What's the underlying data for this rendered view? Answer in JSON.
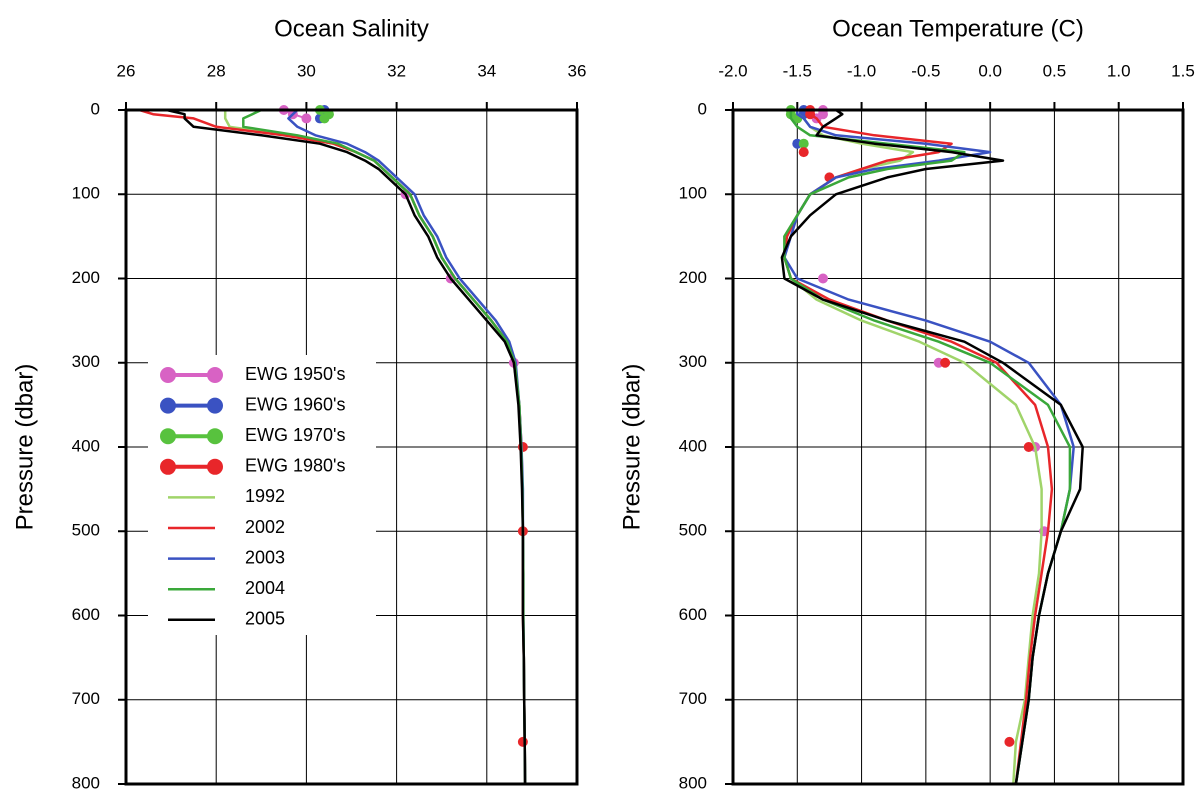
{
  "chart_data": [
    {
      "type": "line",
      "title": "Ocean Salinity",
      "ylabel": "Pressure (dbar)",
      "xlim": [
        26,
        36
      ],
      "xticks": [
        26,
        28,
        30,
        32,
        34,
        36
      ],
      "ylim": [
        0,
        800
      ],
      "yticks": [
        0,
        100,
        200,
        300,
        400,
        500,
        600,
        700,
        800
      ],
      "y_inverted": true,
      "grid": true,
      "legend": "left",
      "pressure": [
        0,
        5,
        10,
        20,
        30,
        40,
        50,
        60,
        70,
        80,
        100,
        125,
        150,
        175,
        200,
        225,
        250,
        275,
        300,
        350,
        400,
        450,
        500,
        550,
        600,
        650,
        700,
        750,
        800
      ],
      "series": [
        {
          "name": "EWG 1950's",
          "color": "#d862c4",
          "markers": true,
          "values": [
            29.5,
            29.7,
            30.0,
            null,
            null,
            null,
            null,
            null,
            null,
            null,
            32.2,
            null,
            null,
            null,
            33.2,
            null,
            null,
            null,
            34.6,
            null,
            null,
            null,
            null,
            null,
            null,
            null,
            null,
            null,
            null
          ]
        },
        {
          "name": "EWG 1960's",
          "color": "#3a52c2",
          "markers": true,
          "values": [
            30.4,
            30.4,
            30.3,
            null,
            null,
            null,
            null,
            null,
            null,
            null,
            null,
            null,
            null,
            null,
            null,
            null,
            null,
            null,
            null,
            null,
            null,
            null,
            null,
            null,
            null,
            null,
            null,
            null,
            null
          ]
        },
        {
          "name": "EWG 1970's",
          "color": "#58c23e",
          "markers": true,
          "values": [
            30.3,
            30.5,
            30.4,
            null,
            null,
            null,
            null,
            null,
            null,
            null,
            null,
            null,
            null,
            null,
            null,
            null,
            null,
            null,
            null,
            null,
            null,
            null,
            null,
            null,
            null,
            null,
            null,
            null,
            null
          ]
        },
        {
          "name": "EWG 1980's",
          "color": "#e8262a",
          "markers": true,
          "values": [
            null,
            null,
            null,
            null,
            null,
            null,
            null,
            null,
            null,
            null,
            null,
            null,
            null,
            null,
            null,
            null,
            null,
            null,
            null,
            null,
            34.8,
            null,
            34.8,
            null,
            null,
            null,
            null,
            34.8,
            null
          ]
        },
        {
          "name": "1992",
          "color": "#a0d46a",
          "values": [
            28.2,
            28.2,
            28.2,
            28.3,
            29.6,
            30.6,
            31.1,
            31.5,
            31.7,
            31.9,
            32.3,
            32.5,
            32.8,
            33.0,
            33.3,
            33.7,
            34.1,
            34.45,
            34.62,
            34.72,
            34.76,
            34.79,
            34.8,
            34.81,
            34.81,
            34.82,
            34.83,
            34.84,
            34.85
          ]
        },
        {
          "name": "2002",
          "color": "#e8262a",
          "values": [
            26.3,
            26.6,
            27.5,
            28.0,
            29.5,
            30.6,
            31.1,
            31.5,
            31.7,
            31.9,
            32.3,
            32.5,
            32.8,
            33.0,
            33.3,
            33.7,
            34.1,
            34.45,
            34.6,
            34.72,
            34.77,
            34.79,
            34.8,
            34.8,
            34.8,
            34.82,
            34.83,
            34.84,
            34.85
          ]
        },
        {
          "name": "2003",
          "color": "#3a52c2",
          "values": [
            29.8,
            29.7,
            29.6,
            29.8,
            30.2,
            30.9,
            31.3,
            31.6,
            31.8,
            32.0,
            32.4,
            32.6,
            32.9,
            33.1,
            33.4,
            33.8,
            34.2,
            34.5,
            34.64,
            34.72,
            34.77,
            34.8,
            34.8,
            34.81,
            34.81,
            34.82,
            34.83,
            34.84,
            34.85
          ]
        },
        {
          "name": "2004",
          "color": "#3aa83a",
          "values": [
            29.0,
            28.8,
            28.6,
            28.6,
            29.8,
            30.7,
            31.1,
            31.5,
            31.7,
            31.9,
            32.3,
            32.5,
            32.8,
            33.0,
            33.3,
            33.7,
            34.1,
            34.45,
            34.62,
            34.72,
            34.76,
            34.79,
            34.8,
            34.81,
            34.81,
            34.82,
            34.83,
            34.84,
            34.85
          ]
        },
        {
          "name": "2005",
          "color": "#000000",
          "values": [
            26.9,
            27.3,
            27.3,
            27.5,
            29.0,
            30.3,
            30.9,
            31.3,
            31.6,
            31.8,
            32.2,
            32.4,
            32.7,
            32.9,
            33.2,
            33.6,
            34.0,
            34.4,
            34.6,
            34.7,
            34.75,
            34.78,
            34.8,
            34.8,
            34.8,
            34.82,
            34.83,
            34.84,
            34.85
          ]
        }
      ]
    },
    {
      "type": "line",
      "title": "Ocean Temperature (C)",
      "ylabel": "Pressure (dbar)",
      "xlim": [
        -2.0,
        1.5
      ],
      "xticks": [
        {
          "value": -2,
          "label": "-2.0"
        },
        -1.5,
        {
          "value": -1,
          "label": "-1.0"
        },
        -0.5,
        {
          "value": 0,
          "label": "0.0"
        },
        0.5,
        {
          "value": 1,
          "label": "1.0"
        },
        1.5
      ],
      "ylim": [
        0,
        800
      ],
      "yticks": [
        0,
        100,
        200,
        300,
        400,
        500,
        600,
        700,
        800
      ],
      "y_inverted": true,
      "grid": true,
      "pressure": [
        0,
        5,
        10,
        20,
        30,
        40,
        50,
        60,
        70,
        80,
        100,
        125,
        150,
        175,
        200,
        225,
        250,
        275,
        300,
        350,
        400,
        450,
        500,
        550,
        600,
        650,
        700,
        750,
        800
      ],
      "series": [
        {
          "name": "EWG 1950's",
          "color": "#d862c4",
          "markers": true,
          "values": [
            -1.3,
            -1.3,
            -1.35,
            null,
            null,
            null,
            null,
            null,
            null,
            null,
            null,
            null,
            null,
            null,
            -1.3,
            null,
            null,
            null,
            -0.4,
            null,
            0.35,
            null,
            0.42,
            null,
            null,
            null,
            null,
            null,
            null
          ]
        },
        {
          "name": "EWG 1960's",
          "color": "#3a52c2",
          "markers": true,
          "values": [
            -1.45,
            -1.45,
            null,
            null,
            null,
            -1.5,
            null,
            null,
            null,
            null,
            null,
            null,
            null,
            null,
            null,
            null,
            null,
            null,
            null,
            null,
            null,
            null,
            null,
            null,
            null,
            null,
            null,
            null,
            null
          ]
        },
        {
          "name": "EWG 1970's",
          "color": "#58c23e",
          "markers": true,
          "values": [
            -1.55,
            -1.55,
            -1.5,
            null,
            null,
            -1.45,
            null,
            null,
            null,
            null,
            null,
            null,
            null,
            null,
            null,
            null,
            null,
            null,
            null,
            null,
            null,
            null,
            null,
            null,
            null,
            null,
            null,
            null,
            null
          ]
        },
        {
          "name": "EWG 1980's",
          "color": "#e8262a",
          "markers": true,
          "values": [
            -1.4,
            -1.4,
            null,
            null,
            null,
            null,
            -1.45,
            null,
            null,
            -1.25,
            null,
            null,
            null,
            null,
            null,
            null,
            null,
            null,
            -0.35,
            null,
            0.3,
            null,
            null,
            null,
            null,
            null,
            null,
            0.15,
            null
          ]
        },
        {
          "name": "1992",
          "color": "#a0d46a",
          "values": [
            -1.5,
            -1.5,
            -1.45,
            -1.4,
            -1.3,
            -1.0,
            -0.6,
            -0.7,
            -1.0,
            -1.2,
            -1.4,
            -1.5,
            -1.6,
            -1.6,
            -1.55,
            -1.35,
            -1.0,
            -0.55,
            -0.2,
            0.2,
            0.35,
            0.4,
            0.4,
            0.38,
            0.33,
            0.3,
            0.27,
            0.2,
            0.18
          ]
        },
        {
          "name": "2002",
          "color": "#e8262a",
          "values": [
            -1.4,
            -1.4,
            -1.35,
            -1.3,
            -0.9,
            -0.3,
            -0.4,
            -0.8,
            -1.0,
            -1.2,
            -1.4,
            -1.5,
            -1.58,
            -1.6,
            -1.55,
            -1.25,
            -0.8,
            -0.3,
            0.05,
            0.35,
            0.45,
            0.48,
            0.45,
            0.4,
            0.35,
            0.31,
            0.28,
            0.24,
            0.2
          ]
        },
        {
          "name": "2003",
          "color": "#3a52c2",
          "values": [
            -1.5,
            -1.5,
            -1.45,
            -1.4,
            -1.2,
            -0.5,
            0.0,
            -0.4,
            -0.9,
            -1.2,
            -1.4,
            -1.5,
            -1.55,
            -1.6,
            -1.5,
            -1.1,
            -0.5,
            0.0,
            0.3,
            0.55,
            0.65,
            0.62,
            0.55,
            0.45,
            0.38,
            0.33,
            0.3,
            0.25,
            0.2
          ]
        },
        {
          "name": "2004",
          "color": "#3aa83a",
          "values": [
            -1.55,
            -1.55,
            -1.55,
            -1.5,
            -1.4,
            -0.8,
            -0.2,
            -0.3,
            -0.8,
            -1.1,
            -1.4,
            -1.5,
            -1.6,
            -1.6,
            -1.55,
            -1.3,
            -0.9,
            -0.4,
            0.0,
            0.45,
            0.62,
            0.62,
            0.55,
            0.45,
            0.38,
            0.33,
            0.3,
            0.25,
            0.2
          ]
        },
        {
          "name": "2005",
          "color": "#000000",
          "values": [
            -1.2,
            -1.15,
            -1.2,
            -1.3,
            -1.35,
            -0.9,
            -0.3,
            0.1,
            -0.5,
            -0.8,
            -1.2,
            -1.4,
            -1.55,
            -1.62,
            -1.6,
            -1.3,
            -0.8,
            -0.2,
            0.1,
            0.55,
            0.72,
            0.7,
            0.55,
            0.45,
            0.38,
            0.33,
            0.3,
            0.25,
            0.2
          ]
        }
      ]
    }
  ]
}
